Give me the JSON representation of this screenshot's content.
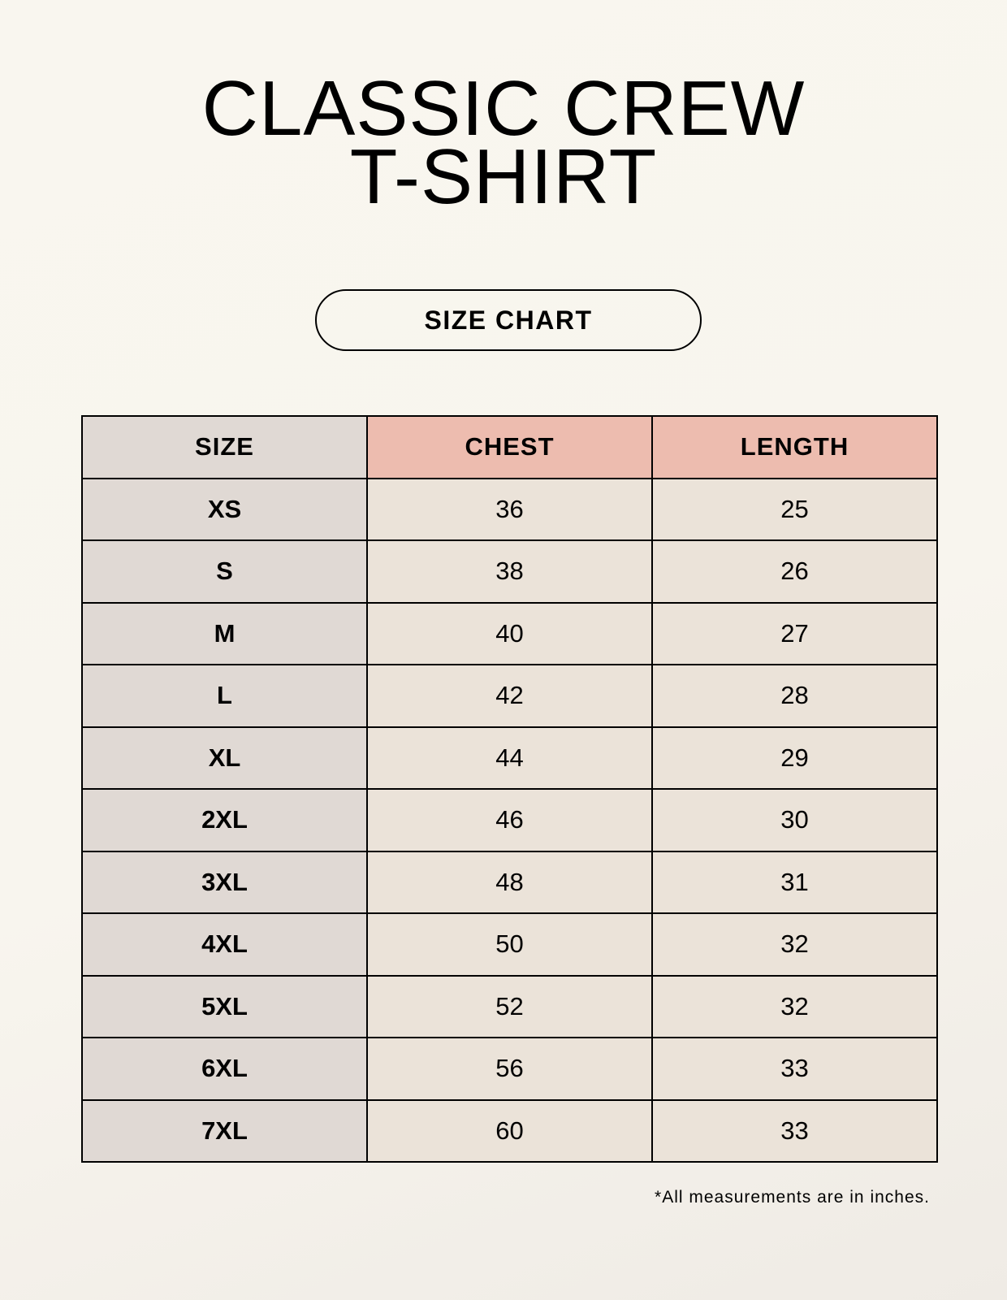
{
  "title": {
    "line1": "CLASSIC CREW",
    "line2": "T-SHIRT"
  },
  "badge": "SIZE CHART",
  "colors": {
    "size_column": "#e0d9d4",
    "header_highlight": "#edbcaf",
    "value_cells": "#ebe3d9"
  },
  "table": {
    "headers": [
      "SIZE",
      "CHEST",
      "LENGTH"
    ],
    "rows": [
      [
        "XS",
        "36",
        "25"
      ],
      [
        "S",
        "38",
        "26"
      ],
      [
        "M",
        "40",
        "27"
      ],
      [
        "L",
        "42",
        "28"
      ],
      [
        "XL",
        "44",
        "29"
      ],
      [
        "2XL",
        "46",
        "30"
      ],
      [
        "3XL",
        "48",
        "31"
      ],
      [
        "4XL",
        "50",
        "32"
      ],
      [
        "5XL",
        "52",
        "32"
      ],
      [
        "6XL",
        "56",
        "33"
      ],
      [
        "7XL",
        "60",
        "33"
      ]
    ]
  },
  "footnote": "*All measurements are in inches."
}
